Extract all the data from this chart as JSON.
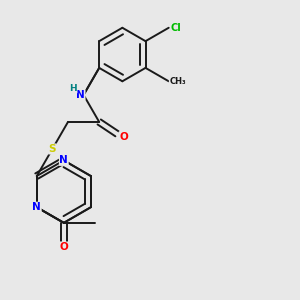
{
  "background_color": "#e8e8e8",
  "bond_color": "#1a1a1a",
  "atom_colors": {
    "N": "#0000ff",
    "O": "#ff0000",
    "S": "#cccc00",
    "Cl": "#00bb00",
    "H": "#008080",
    "C": "#1a1a1a"
  },
  "figsize": [
    3.0,
    3.0
  ],
  "dpi": 100
}
